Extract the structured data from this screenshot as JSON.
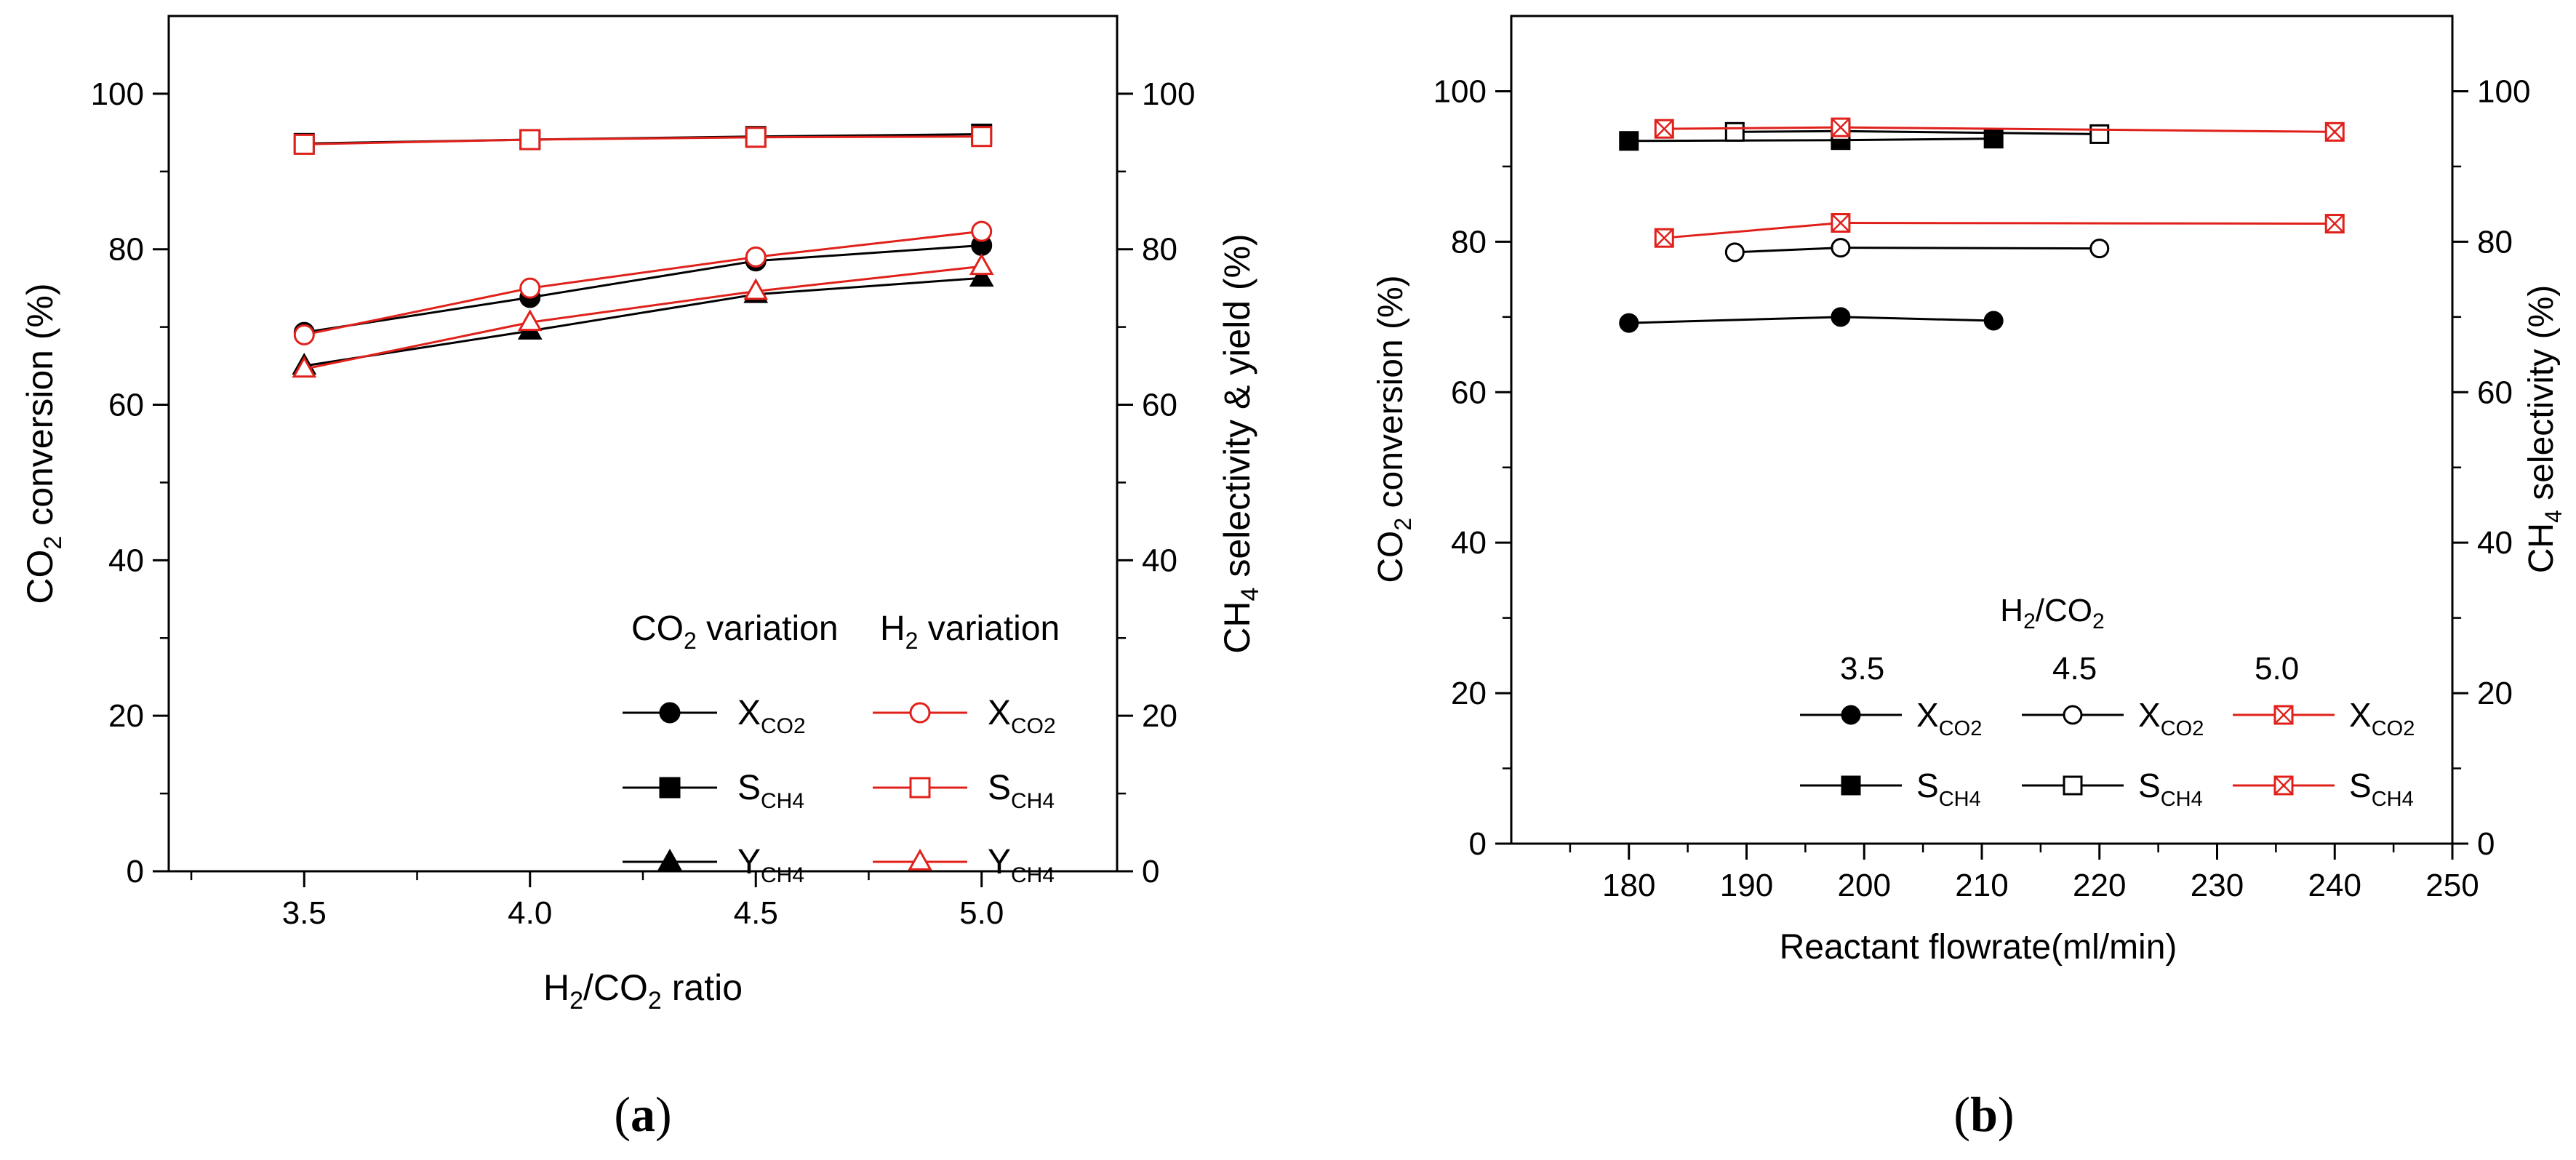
{
  "chart_data": [
    {
      "panel": "a",
      "type": "line",
      "caption": "(a)",
      "xlabel": "H2/CO2 ratio",
      "ylabel_left": "CO2 conversion (%)",
      "ylabel_right": "CH4 selectivity & yield (%)",
      "xlim": [
        3.2,
        5.3
      ],
      "ylim": [
        0,
        110
      ],
      "x_ticks": [
        3.5,
        4.0,
        4.5,
        5.0
      ],
      "x_tick_labels": [
        "3.5",
        "4.0",
        "4.5",
        "5.0"
      ],
      "y_ticks": [
        0,
        20,
        40,
        60,
        80,
        100
      ],
      "y_tick_labels": [
        "0",
        "20",
        "40",
        "60",
        "80",
        "100"
      ],
      "legend": {
        "position": "bottom-right",
        "column_headers": [
          "CO2 variation",
          "H2 variation"
        ],
        "row_labels": [
          "XCO2",
          "SCH4",
          "YCH4"
        ]
      },
      "series": [
        {
          "name": "XCO2 (CO2 variation)",
          "group": "CO2 variation",
          "color": "#000000",
          "marker": "circle",
          "filled": true,
          "x": [
            3.5,
            4.0,
            4.5,
            5.0
          ],
          "values": [
            69.3,
            73.8,
            78.5,
            80.5
          ]
        },
        {
          "name": "SCH4 (CO2 variation)",
          "group": "CO2 variation",
          "color": "#000000",
          "marker": "square",
          "filled": true,
          "x": [
            3.5,
            4.0,
            4.5,
            5.0
          ],
          "values": [
            93.6,
            94.1,
            94.5,
            94.8
          ]
        },
        {
          "name": "YCH4 (CO2 variation)",
          "group": "CO2 variation",
          "color": "#000000",
          "marker": "triangle",
          "filled": true,
          "x": [
            3.5,
            4.0,
            4.5,
            5.0
          ],
          "values": [
            65.0,
            69.5,
            74.2,
            76.3
          ]
        },
        {
          "name": "XCO2 (H2 variation)",
          "group": "H2 variation",
          "color": "#e0211b",
          "marker": "circle",
          "filled": false,
          "x": [
            3.5,
            4.0,
            4.5,
            5.0
          ],
          "values": [
            69.0,
            75.0,
            79.0,
            82.3
          ]
        },
        {
          "name": "SCH4 (H2 variation)",
          "group": "H2 variation",
          "color": "#e0211b",
          "marker": "square",
          "filled": false,
          "x": [
            3.5,
            4.0,
            4.5,
            5.0
          ],
          "values": [
            93.5,
            94.1,
            94.4,
            94.5
          ]
        },
        {
          "name": "YCH4 (H2 variation)",
          "group": "H2 variation",
          "color": "#e0211b",
          "marker": "triangle",
          "filled": false,
          "x": [
            3.5,
            4.0,
            4.5,
            5.0
          ],
          "values": [
            64.6,
            70.6,
            74.6,
            77.8
          ]
        }
      ]
    },
    {
      "panel": "b",
      "type": "line",
      "caption": "(b)",
      "xlabel": "Reactant flowrate(ml/min)",
      "ylabel_left": "CO2 conversion (%)",
      "ylabel_right": "CH4 selectivity (%)",
      "xlim": [
        170,
        250
      ],
      "ylim": [
        0,
        110
      ],
      "x_ticks": [
        180,
        190,
        200,
        210,
        220,
        230,
        240,
        250
      ],
      "x_tick_labels": [
        "180",
        "190",
        "200",
        "210",
        "220",
        "230",
        "240",
        "250"
      ],
      "y_ticks": [
        0,
        20,
        40,
        60,
        80,
        100
      ],
      "y_tick_labels": [
        "0",
        "20",
        "40",
        "60",
        "80",
        "100"
      ],
      "legend": {
        "position": "bottom-right",
        "title": "H2/CO2",
        "column_headers": [
          "3.5",
          "4.5",
          "5.0"
        ],
        "row_labels": [
          "XCO2",
          "SCH4"
        ]
      },
      "series": [
        {
          "name": "XCO2 (3.5)",
          "group": "3.5",
          "color": "#000000",
          "marker": "circle",
          "filled": true,
          "x": [
            180,
            198,
            211
          ],
          "values": [
            69.2,
            70.0,
            69.5
          ]
        },
        {
          "name": "SCH4 (3.5)",
          "group": "3.5",
          "color": "#000000",
          "marker": "square",
          "filled": true,
          "x": [
            180,
            198,
            211
          ],
          "values": [
            93.4,
            93.5,
            93.7
          ]
        },
        {
          "name": "XCO2 (4.5)",
          "group": "4.5",
          "color": "#000000",
          "marker": "circle",
          "filled": false,
          "x": [
            189,
            198,
            220
          ],
          "values": [
            78.6,
            79.2,
            79.1
          ]
        },
        {
          "name": "SCH4 (4.5)",
          "group": "4.5",
          "color": "#000000",
          "marker": "square",
          "filled": false,
          "x": [
            189,
            198,
            220
          ],
          "values": [
            94.6,
            94.7,
            94.3
          ]
        },
        {
          "name": "XCO2 (5.0)",
          "group": "5.0",
          "color": "#e0211b",
          "marker": "xsquare",
          "filled": false,
          "x": [
            183,
            198,
            240
          ],
          "values": [
            80.5,
            82.5,
            82.4
          ]
        },
        {
          "name": "SCH4 (5.0)",
          "group": "5.0",
          "color": "#e0211b",
          "marker": "xsquare",
          "filled": false,
          "x": [
            183,
            198,
            240
          ],
          "values": [
            95.0,
            95.2,
            94.6
          ]
        }
      ]
    }
  ]
}
